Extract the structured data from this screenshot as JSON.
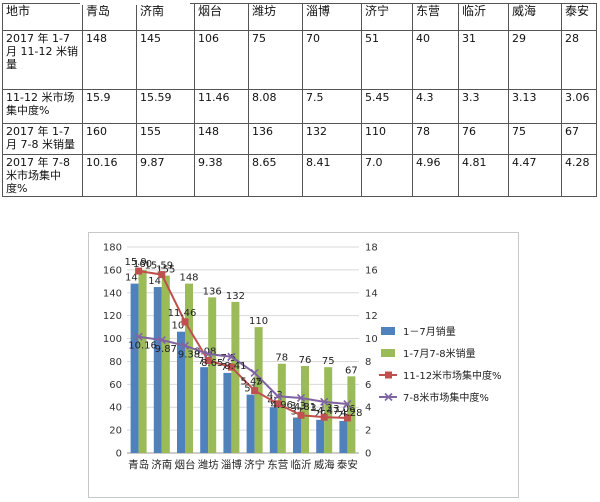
{
  "table": {
    "header": [
      "地市",
      "青岛",
      "济南",
      "烟台",
      "潍坊",
      "淄博",
      "济宁",
      "东营",
      "临沂",
      "威海",
      "泰安"
    ],
    "rows": [
      {
        "label": "2017 年 1-7 月 11-12 米销量",
        "cells": [
          "148",
          "145",
          "106",
          "75",
          "70",
          "51",
          "40",
          "31",
          "29",
          "28"
        ]
      },
      {
        "label": "11-12 米市场集中度%",
        "cells": [
          "15.9",
          "15.59",
          "11.46",
          "8.08",
          "7.5",
          "5.45",
          "4.3",
          "3.3",
          "3.13",
          "3.06"
        ]
      },
      {
        "label": "2017 年 1-7 月 7-8 米销量",
        "cells": [
          "160",
          "155",
          "148",
          "136",
          "132",
          "110",
          "78",
          "76",
          "75",
          "67"
        ]
      },
      {
        "label": "2017 年 7-8 米市场集中度%",
        "cells": [
          "10.16",
          "9.87",
          "9.38",
          "8.65",
          "8.41",
          "7.0",
          "4.96",
          "4.81",
          "4.47",
          "4.28"
        ]
      }
    ]
  },
  "chart_data": {
    "type": "bar",
    "categories": [
      "青岛",
      "济南",
      "烟台",
      "潍坊",
      "淄博",
      "济宁",
      "东营",
      "临沂",
      "威海",
      "泰安"
    ],
    "series": [
      {
        "name": "1－7月销量",
        "type": "bar",
        "axis": "left",
        "color": "#4f81bd",
        "values": [
          148,
          145,
          106,
          75,
          70,
          51,
          40,
          31,
          29,
          28
        ]
      },
      {
        "name": "1-7月7-8米销量",
        "type": "bar",
        "axis": "left",
        "color": "#9bbb59",
        "values": [
          160,
          155,
          148,
          136,
          132,
          110,
          78,
          76,
          75,
          67
        ]
      },
      {
        "name": "11-12米市场集中度%",
        "type": "line",
        "axis": "right",
        "color": "#c0504d",
        "marker": "square",
        "values": [
          15.9,
          15.59,
          11.46,
          8.08,
          7.5,
          5.45,
          4.3,
          3.3,
          3.13,
          3.06
        ]
      },
      {
        "name": "7-8米市场集中度%",
        "type": "line",
        "axis": "right",
        "color": "#8064a2",
        "marker": "x",
        "values": [
          10.16,
          9.87,
          9.38,
          8.65,
          8.41,
          7.0,
          4.96,
          4.81,
          4.47,
          4.28
        ]
      }
    ],
    "ylim": [
      0,
      180
    ],
    "yticks": [
      "0",
      "20",
      "40",
      "60",
      "80",
      "100",
      "120",
      "140",
      "160",
      "180"
    ],
    "y2lim": [
      0,
      18
    ],
    "y2ticks": [
      "0",
      "2",
      "4",
      "6",
      "8",
      "10",
      "12",
      "14",
      "16",
      "18"
    ],
    "grid": true,
    "legend": "right"
  }
}
